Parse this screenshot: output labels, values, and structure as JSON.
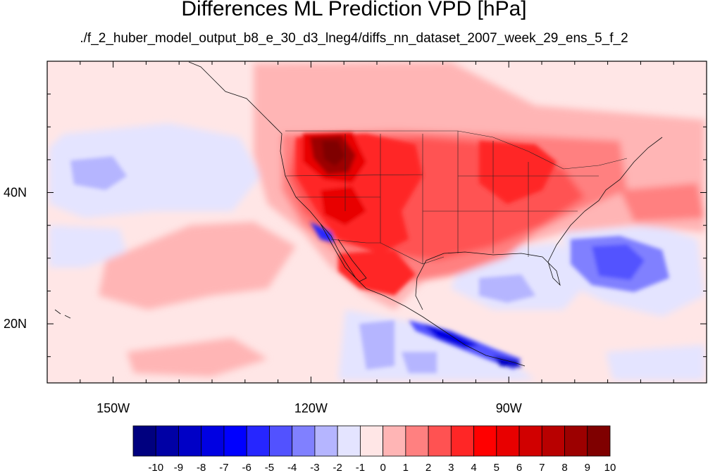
{
  "title": "Differences ML Prediction VPD [hPa]",
  "subtitle": "./f_2_huber_model_output_b8_e_30_d3_lneg4/diffs_nn_dataset_2007_week_29_ens_5_f_2",
  "chart_data": {
    "type": "heatmap",
    "title": "Differences ML Prediction VPD [hPa]",
    "subtitle": "./f_2_huber_model_output_b8_e_30_d3_lneg4/diffs_nn_dataset_2007_week_29_ens_5_f_2",
    "xlim": [
      -160,
      -60
    ],
    "ylim": [
      11,
      60
    ],
    "x_ticks": [
      -150,
      -120,
      -90
    ],
    "x_tick_labels": [
      "150W",
      "120W",
      "90W"
    ],
    "y_ticks": [
      20,
      40
    ],
    "y_tick_labels": [
      "20N",
      "40N"
    ],
    "colorbar": {
      "levels": [
        -10,
        -9,
        -8,
        -7,
        -6,
        -5,
        -4,
        -3,
        -2,
        -1,
        0,
        1,
        2,
        3,
        4,
        5,
        6,
        7,
        8,
        9,
        10
      ],
      "labels": [
        "-10",
        "-9",
        "-8",
        "-7",
        "-6",
        "-5",
        "-4",
        "-3",
        "-2",
        "-1",
        "0",
        "1",
        "2",
        "3",
        "4",
        "5",
        "6",
        "7",
        "8",
        "9",
        "10"
      ],
      "colors": [
        "#00007f",
        "#0000a5",
        "#0000c6",
        "#0000e2",
        "#0000ff",
        "#2626ff",
        "#5252ff",
        "#8080ff",
        "#b5b5ff",
        "#e4e4ff",
        "#ffe6e6",
        "#ffb5b5",
        "#ff8080",
        "#ff5252",
        "#ff2626",
        "#ff0000",
        "#e80000",
        "#d10000",
        "#b80000",
        "#9c0000",
        "#7f0000"
      ]
    }
  }
}
